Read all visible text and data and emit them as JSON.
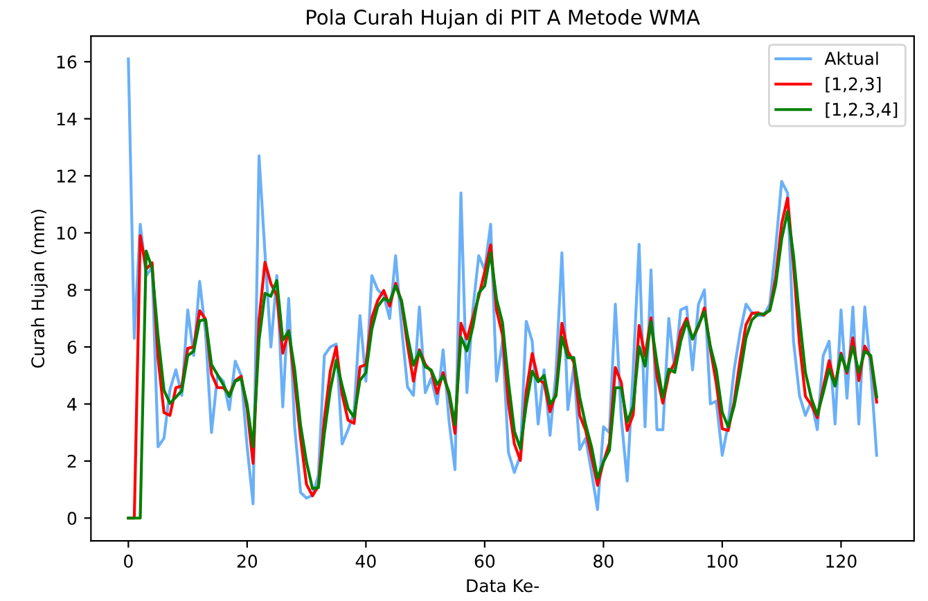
{
  "chart_data": {
    "type": "line",
    "title": "Pola Curah Hujan di PIT A Metode WMA",
    "xlabel": "Data Ke-",
    "ylabel": "Curah Hujan (mm)",
    "x": [
      0,
      1,
      2,
      3,
      4,
      5,
      6,
      7,
      8,
      9,
      10,
      11,
      12,
      13,
      14,
      15,
      16,
      17,
      18,
      19,
      20,
      21,
      22,
      23,
      24,
      25,
      26,
      27,
      28,
      29,
      30,
      31,
      32,
      33,
      34,
      35,
      36,
      37,
      38,
      39,
      40,
      41,
      42,
      43,
      44,
      45,
      46,
      47,
      48,
      49,
      50,
      51,
      52,
      53,
      54,
      55,
      56,
      57,
      58,
      59,
      60,
      61,
      62,
      63,
      64,
      65,
      66,
      67,
      68,
      69,
      70,
      71,
      72,
      73,
      74,
      75,
      76,
      77,
      78,
      79,
      80,
      81,
      82,
      83,
      84,
      85,
      86,
      87,
      88,
      89,
      90,
      91,
      92,
      93,
      94,
      95,
      96,
      97,
      98,
      99,
      100,
      101,
      102,
      103,
      104,
      105,
      106,
      107,
      108,
      109,
      110,
      111,
      112,
      113,
      114,
      115,
      116,
      117,
      118,
      119,
      120,
      121,
      122,
      123,
      124,
      125,
      126
    ],
    "series": [
      {
        "name": "Aktual",
        "color": "#6ab0f8",
        "values": [
          16.1,
          6.3,
          10.3,
          8.5,
          8.8,
          2.5,
          2.8,
          4.5,
          5.2,
          4.3,
          7.3,
          5.7,
          8.3,
          6.5,
          3.0,
          5.0,
          4.8,
          3.8,
          5.5,
          5.0,
          2.5,
          0.5,
          12.7,
          9.3,
          6.0,
          8.5,
          3.9,
          7.7,
          3.2,
          0.9,
          0.7,
          0.8,
          1.5,
          5.7,
          6.0,
          6.1,
          2.6,
          3.1,
          3.7,
          7.1,
          4.8,
          8.5,
          8.0,
          7.8,
          7.0,
          9.2,
          6.7,
          4.6,
          4.3,
          7.4,
          4.4,
          4.9,
          4.0,
          5.9,
          3.4,
          1.7,
          11.4,
          4.4,
          7.3,
          9.2,
          8.7,
          10.3,
          4.8,
          6.2,
          2.3,
          1.6,
          2.2,
          6.9,
          6.2,
          3.3,
          5.2,
          2.9,
          5.1,
          9.3,
          3.8,
          5.3,
          2.4,
          2.8,
          1.6,
          0.3,
          3.2,
          3.0,
          7.5,
          3.5,
          1.3,
          5.2,
          9.6,
          3.2,
          8.7,
          3.1,
          3.1,
          7.0,
          5.2,
          7.3,
          7.4,
          5.2,
          7.5,
          8.0,
          4.0,
          4.1,
          2.2,
          3.3,
          5.2,
          6.5,
          7.5,
          7.2,
          7.1,
          7.1,
          7.5,
          9.5,
          11.8,
          11.4,
          6.2,
          4.3,
          3.6,
          4.1,
          3.1,
          5.7,
          6.2,
          3.3,
          7.3,
          4.2,
          7.4,
          3.3,
          7.4,
          5.2,
          2.2
        ]
      },
      {
        "name": "[1,2,3]",
        "color": "#ff0000",
        "values": [
          0,
          0,
          9.9,
          8.73,
          8.95,
          5.6,
          3.7,
          3.6,
          4.57,
          4.63,
          5.95,
          6.0,
          7.27,
          6.97,
          5.05,
          4.58,
          4.57,
          4.33,
          4.82,
          4.97,
          3.83,
          1.92,
          6.93,
          8.97,
          8.22,
          7.8,
          5.78,
          6.57,
          4.82,
          2.8,
          1.18,
          0.78,
          1.13,
          3.48,
          5.15,
          6.0,
          4.33,
          3.43,
          3.32,
          5.3,
          5.38,
          7.03,
          7.63,
          7.98,
          7.43,
          8.23,
          7.58,
          6.07,
          4.8,
          5.9,
          5.38,
          5.15,
          4.37,
          5.1,
          4.33,
          2.97,
          6.83,
          6.28,
          7.02,
          7.77,
          8.63,
          9.58,
          7.28,
          6.42,
          4.02,
          2.6,
          2.02,
          4.45,
          5.77,
          4.87,
          4.73,
          3.73,
          4.38,
          6.83,
          5.85,
          5.47,
          3.6,
          3.08,
          2.13,
          1.15,
          1.97,
          2.62,
          5.28,
          4.75,
          3.07,
          3.62,
          6.75,
          5.67,
          7.02,
          4.98,
          4.03,
          5.05,
          5.45,
          6.55,
          7.0,
          6.28,
          6.72,
          7.37,
          5.92,
          4.72,
          3.13,
          3.07,
          4.07,
          5.53,
          6.78,
          7.18,
          7.2,
          7.12,
          7.3,
          8.43,
          10.32,
          11.22,
          8.87,
          6.12,
          4.27,
          3.97,
          3.52,
          4.57,
          5.52,
          4.67,
          5.78,
          5.08,
          6.32,
          4.82,
          6.03,
          5.62,
          4.07
        ]
      },
      {
        "name": "[1,2,3,4]",
        "color": "#008000",
        "values": [
          0,
          0,
          0,
          9.36,
          8.76,
          6.37,
          4.48,
          4.02,
          4.24,
          4.46,
          5.7,
          5.85,
          6.92,
          6.96,
          5.38,
          5.03,
          4.67,
          4.26,
          4.8,
          4.89,
          3.98,
          2.5,
          6.23,
          7.88,
          7.78,
          8.33,
          6.24,
          6.55,
          5.22,
          3.25,
          1.96,
          1.03,
          1.07,
          2.96,
          4.49,
          5.53,
          4.64,
          3.84,
          3.54,
          4.83,
          5.1,
          6.63,
          7.42,
          7.7,
          7.59,
          8.14,
          7.62,
          6.39,
          5.36,
          5.84,
          5.3,
          5.19,
          4.69,
          4.98,
          4.42,
          3.28,
          6.34,
          5.86,
          6.69,
          7.89,
          8.14,
          9.3,
          7.67,
          6.85,
          4.77,
          3.05,
          2.44,
          3.97,
          5.15,
          4.78,
          5.0,
          4.0,
          4.28,
          6.35,
          5.62,
          5.63,
          4.24,
          3.28,
          2.49,
          1.4,
          1.97,
          2.38,
          4.57,
          4.57,
          3.37,
          3.92,
          6.01,
          5.33,
          6.88,
          5.45,
          4.23,
          5.22,
          5.11,
          6.19,
          6.89,
          6.28,
          6.77,
          7.23,
          6.02,
          5.19,
          3.71,
          3.2,
          3.92,
          5.04,
          6.32,
          6.95,
          7.15,
          7.16,
          7.27,
          8.18,
          9.78,
          10.75,
          9.21,
          7.04,
          5.11,
          4.2,
          3.62,
          4.39,
          5.22,
          4.63,
          5.72,
          5.15,
          6.01,
          5.11,
          5.85,
          5.7,
          4.25
        ]
      }
    ],
    "xlim": [
      -6.3,
      132.3
    ],
    "xticks": [
      0,
      20,
      40,
      60,
      80,
      100,
      120
    ],
    "ylim": [
      -0.8,
      16.9
    ],
    "yticks": [
      0,
      2,
      4,
      6,
      8,
      10,
      12,
      14,
      16
    ],
    "legend": "top right",
    "grid": false
  }
}
